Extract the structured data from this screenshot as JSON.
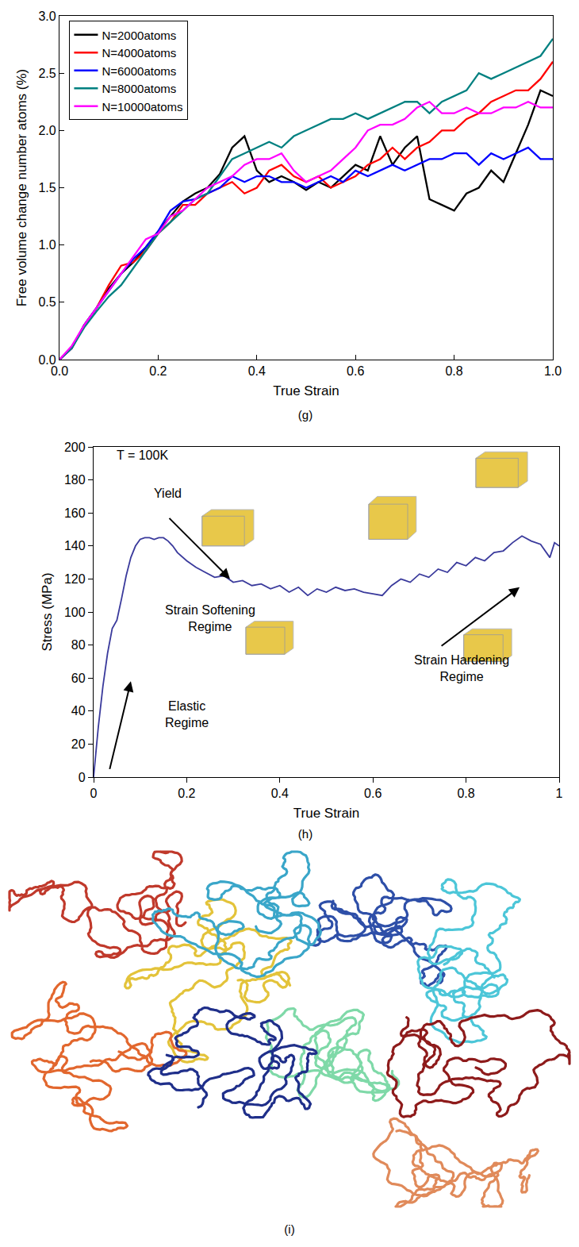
{
  "chart_data": [
    {
      "type": "line",
      "panel": "(g)",
      "x_label": "True Strain",
      "y_label": "Free volume change number atoms (%)",
      "x": [
        0,
        0.025,
        0.05,
        0.075,
        0.1,
        0.125,
        0.15,
        0.175,
        0.2,
        0.225,
        0.25,
        0.275,
        0.3,
        0.325,
        0.35,
        0.375,
        0.4,
        0.425,
        0.45,
        0.475,
        0.5,
        0.525,
        0.55,
        0.575,
        0.6,
        0.625,
        0.65,
        0.675,
        0.7,
        0.725,
        0.75,
        0.775,
        0.8,
        0.825,
        0.85,
        0.875,
        0.9,
        0.925,
        0.95,
        0.975,
        1.0
      ],
      "series": [
        {
          "name": "N=2000atoms",
          "color": "#000000",
          "values": [
            0,
            0.1,
            0.3,
            0.45,
            0.62,
            0.75,
            0.85,
            0.98,
            1.12,
            1.25,
            1.38,
            1.45,
            1.5,
            1.62,
            1.85,
            1.95,
            1.65,
            1.55,
            1.6,
            1.55,
            1.48,
            1.55,
            1.5,
            1.6,
            1.7,
            1.65,
            1.95,
            1.7,
            1.85,
            1.95,
            1.4,
            1.35,
            1.3,
            1.45,
            1.5,
            1.65,
            1.55,
            1.8,
            2.05,
            2.35,
            2.3
          ]
        },
        {
          "name": "N=4000atoms",
          "color": "#ff0000",
          "values": [
            0,
            0.1,
            0.3,
            0.45,
            0.65,
            0.82,
            0.85,
            0.95,
            1.1,
            1.2,
            1.35,
            1.35,
            1.45,
            1.5,
            1.55,
            1.45,
            1.5,
            1.65,
            1.7,
            1.6,
            1.55,
            1.6,
            1.5,
            1.55,
            1.6,
            1.7,
            1.75,
            1.85,
            1.75,
            1.85,
            1.9,
            2.0,
            2.0,
            2.1,
            2.15,
            2.25,
            2.3,
            2.35,
            2.35,
            2.45,
            2.6
          ]
        },
        {
          "name": "N=6000atoms",
          "color": "#0000ff",
          "values": [
            0,
            0.1,
            0.3,
            0.45,
            0.6,
            0.75,
            0.88,
            0.98,
            1.12,
            1.3,
            1.38,
            1.4,
            1.45,
            1.5,
            1.6,
            1.55,
            1.6,
            1.6,
            1.55,
            1.55,
            1.5,
            1.55,
            1.6,
            1.55,
            1.65,
            1.6,
            1.65,
            1.7,
            1.65,
            1.7,
            1.75,
            1.75,
            1.8,
            1.8,
            1.7,
            1.8,
            1.75,
            1.8,
            1.85,
            1.75,
            1.75
          ]
        },
        {
          "name": "N=8000atoms",
          "color": "#008080",
          "values": [
            0,
            0.1,
            0.28,
            0.42,
            0.55,
            0.65,
            0.8,
            0.95,
            1.1,
            1.2,
            1.3,
            1.4,
            1.45,
            1.6,
            1.75,
            1.8,
            1.85,
            1.9,
            1.85,
            1.95,
            2.0,
            2.05,
            2.1,
            2.1,
            2.15,
            2.1,
            2.15,
            2.2,
            2.25,
            2.25,
            2.15,
            2.25,
            2.3,
            2.35,
            2.5,
            2.45,
            2.5,
            2.55,
            2.6,
            2.65,
            2.8
          ]
        },
        {
          "name": "N=10000atoms",
          "color": "#ff00ff",
          "values": [
            0,
            0.12,
            0.3,
            0.45,
            0.6,
            0.75,
            0.9,
            1.05,
            1.1,
            1.25,
            1.3,
            1.4,
            1.5,
            1.55,
            1.6,
            1.7,
            1.75,
            1.75,
            1.8,
            1.65,
            1.55,
            1.6,
            1.65,
            1.75,
            1.85,
            2.0,
            2.05,
            2.05,
            2.1,
            2.2,
            2.25,
            2.15,
            2.15,
            2.2,
            2.15,
            2.15,
            2.2,
            2.2,
            2.25,
            2.2,
            2.2
          ]
        }
      ],
      "xlim": [
        0,
        1
      ],
      "xticks": [
        {
          "value": 0,
          "label": "0.0"
        },
        0.2,
        0.4,
        0.6,
        0.8,
        {
          "value": 1,
          "label": "1.0"
        }
      ],
      "ylim": [
        0,
        3
      ],
      "yticks": [
        {
          "value": 0,
          "label": "0.0"
        },
        0.5,
        {
          "value": 1,
          "label": "1.0"
        },
        1.5,
        {
          "value": 2,
          "label": "2.0"
        },
        2.5,
        {
          "value": 3,
          "label": "3.0"
        }
      ],
      "legend": "upper left",
      "grid": false
    },
    {
      "type": "line",
      "panel": "(h)",
      "x_label": "True Strain",
      "y_label": "Stress (MPa)",
      "annotations": [
        "T = 100K",
        "Yield",
        "Strain Softening\nRegime",
        "Strain Hardening\nRegime",
        "Elastic\nRegime"
      ],
      "x": [
        0,
        0.01,
        0.02,
        0.03,
        0.04,
        0.05,
        0.06,
        0.07,
        0.08,
        0.09,
        0.1,
        0.11,
        0.12,
        0.13,
        0.14,
        0.15,
        0.16,
        0.17,
        0.18,
        0.2,
        0.22,
        0.24,
        0.26,
        0.28,
        0.3,
        0.32,
        0.34,
        0.36,
        0.38,
        0.4,
        0.42,
        0.44,
        0.46,
        0.48,
        0.5,
        0.52,
        0.54,
        0.56,
        0.58,
        0.6,
        0.62,
        0.64,
        0.66,
        0.68,
        0.7,
        0.72,
        0.74,
        0.76,
        0.78,
        0.8,
        0.82,
        0.84,
        0.86,
        0.88,
        0.9,
        0.92,
        0.94,
        0.96,
        0.98,
        0.99,
        1.0
      ],
      "series": [
        {
          "color": "#3a3a9c",
          "values": [
            0,
            30,
            55,
            75,
            90,
            95,
            108,
            122,
            133,
            140,
            144,
            145,
            145,
            144,
            145,
            145,
            143,
            140,
            136,
            131,
            127,
            124,
            121,
            122,
            118,
            119,
            116,
            117,
            114,
            116,
            112,
            115,
            110,
            114,
            112,
            115,
            113,
            114,
            112,
            111,
            110,
            116,
            120,
            118,
            123,
            121,
            126,
            124,
            130,
            128,
            133,
            131,
            136,
            137,
            142,
            146,
            143,
            141,
            133,
            142,
            140
          ]
        }
      ],
      "xlim": [
        0,
        1
      ],
      "xticks": [
        0,
        0.2,
        0.4,
        0.6,
        0.8,
        1
      ],
      "ylim": [
        0,
        200
      ],
      "yticks": [
        0,
        20,
        40,
        60,
        80,
        100,
        120,
        140,
        160,
        180,
        200
      ],
      "grid": false
    }
  ],
  "image": {
    "panel": "(i)"
  }
}
